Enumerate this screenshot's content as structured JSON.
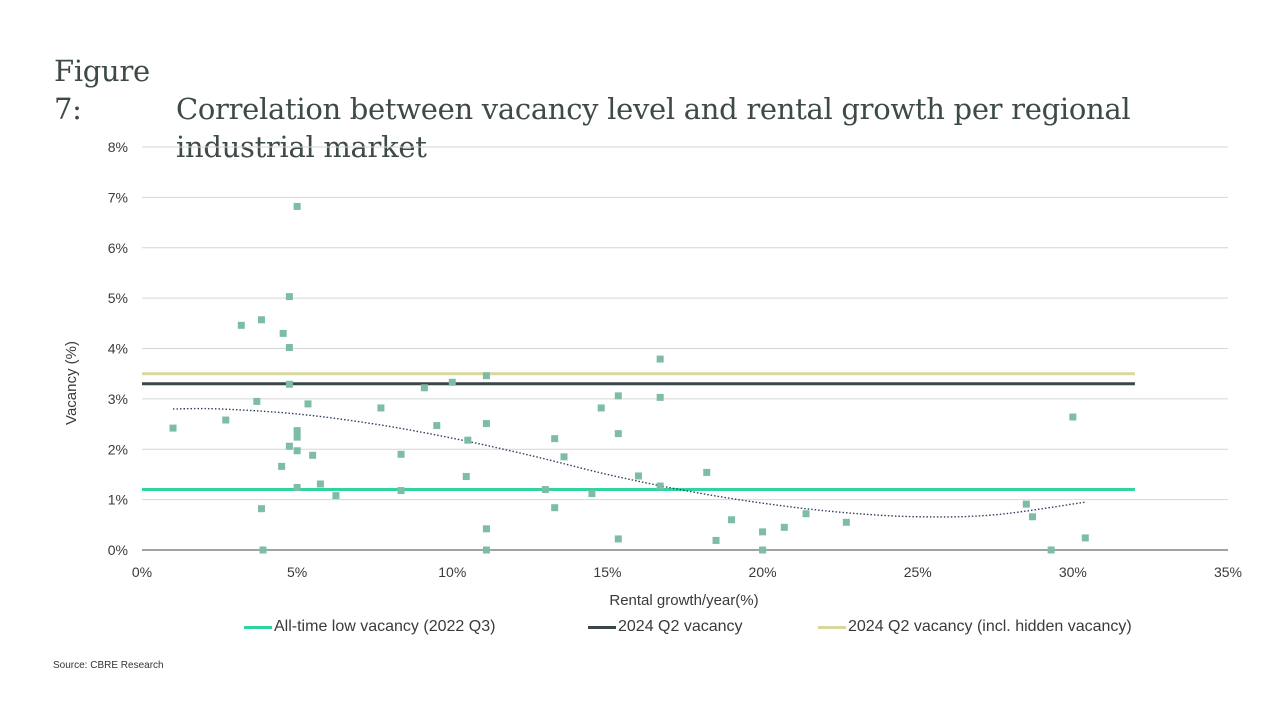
{
  "title": {
    "prefix": "Figure 7:",
    "line1": "Correlation between vacancy level and rental growth per regional",
    "line2": "industrial market"
  },
  "source": "Source: CBRE Research",
  "colors": {
    "points": "#7dbca5",
    "all_time_low": "#2fd4a0",
    "q2_vacancy": "#3b4649",
    "q2_hidden": "#d9d7a0",
    "trend": "#2f3f5f",
    "grid": "#d6d6d6"
  },
  "chart_data": {
    "type": "scatter",
    "title": "Correlation between vacancy level and rental growth per regional industrial market",
    "xlabel": "Rental growth/year(%)",
    "ylabel": "Vacancy (%)",
    "xlim": [
      0,
      35
    ],
    "ylim": [
      0,
      8
    ],
    "x_ticks": [
      "0%",
      "5%",
      "10%",
      "15%",
      "20%",
      "25%",
      "30%",
      "35%"
    ],
    "y_ticks": [
      "0%",
      "1%",
      "2%",
      "3%",
      "4%",
      "5%",
      "6%",
      "7%",
      "8%"
    ],
    "grid": true,
    "points": [
      {
        "x": 1.0,
        "y": 2.42
      },
      {
        "x": 2.7,
        "y": 2.58
      },
      {
        "x": 3.2,
        "y": 4.46
      },
      {
        "x": 3.7,
        "y": 2.95
      },
      {
        "x": 3.85,
        "y": 4.57
      },
      {
        "x": 3.85,
        "y": 0.82
      },
      {
        "x": 3.9,
        "y": 0.0
      },
      {
        "x": 4.5,
        "y": 1.66
      },
      {
        "x": 4.55,
        "y": 4.3
      },
      {
        "x": 4.75,
        "y": 5.03
      },
      {
        "x": 4.75,
        "y": 4.02
      },
      {
        "x": 4.75,
        "y": 3.29
      },
      {
        "x": 4.75,
        "y": 2.06
      },
      {
        "x": 5.0,
        "y": 6.82
      },
      {
        "x": 5.0,
        "y": 2.37
      },
      {
        "x": 5.0,
        "y": 2.24
      },
      {
        "x": 5.0,
        "y": 1.97
      },
      {
        "x": 5.0,
        "y": 1.24
      },
      {
        "x": 5.35,
        "y": 2.9
      },
      {
        "x": 5.5,
        "y": 1.88
      },
      {
        "x": 5.75,
        "y": 1.31
      },
      {
        "x": 6.25,
        "y": 1.08
      },
      {
        "x": 7.7,
        "y": 2.82
      },
      {
        "x": 8.35,
        "y": 1.9
      },
      {
        "x": 8.35,
        "y": 1.18
      },
      {
        "x": 9.1,
        "y": 3.22
      },
      {
        "x": 9.5,
        "y": 2.47
      },
      {
        "x": 10.0,
        "y": 3.33
      },
      {
        "x": 10.45,
        "y": 1.46
      },
      {
        "x": 10.5,
        "y": 2.18
      },
      {
        "x": 11.1,
        "y": 3.46
      },
      {
        "x": 11.1,
        "y": 2.51
      },
      {
        "x": 11.1,
        "y": 0.42
      },
      {
        "x": 11.1,
        "y": 0.0
      },
      {
        "x": 13.0,
        "y": 1.2
      },
      {
        "x": 13.3,
        "y": 2.21
      },
      {
        "x": 13.3,
        "y": 0.84
      },
      {
        "x": 13.6,
        "y": 1.85
      },
      {
        "x": 14.5,
        "y": 1.12
      },
      {
        "x": 14.8,
        "y": 2.82
      },
      {
        "x": 15.35,
        "y": 3.06
      },
      {
        "x": 15.35,
        "y": 2.31
      },
      {
        "x": 15.35,
        "y": 0.22
      },
      {
        "x": 16.0,
        "y": 1.47
      },
      {
        "x": 16.7,
        "y": 3.79
      },
      {
        "x": 16.7,
        "y": 3.03
      },
      {
        "x": 16.7,
        "y": 1.27
      },
      {
        "x": 18.2,
        "y": 1.54
      },
      {
        "x": 18.5,
        "y": 0.19
      },
      {
        "x": 19.0,
        "y": 0.6
      },
      {
        "x": 20.0,
        "y": 0.36
      },
      {
        "x": 20.0,
        "y": 0.0
      },
      {
        "x": 20.7,
        "y": 0.45
      },
      {
        "x": 21.4,
        "y": 0.72
      },
      {
        "x": 22.7,
        "y": 0.55
      },
      {
        "x": 28.5,
        "y": 0.91
      },
      {
        "x": 28.7,
        "y": 0.66
      },
      {
        "x": 29.3,
        "y": 0.0
      },
      {
        "x": 30.0,
        "y": 2.64
      },
      {
        "x": 30.4,
        "y": 0.24
      }
    ],
    "series": [
      {
        "name": "All-time low vacancy (2022 Q3)",
        "type": "hline",
        "y": 1.2,
        "x_range": [
          0,
          32
        ]
      },
      {
        "name": "2024 Q2 vacancy",
        "type": "hline",
        "y": 3.3,
        "x_range": [
          0,
          32
        ]
      },
      {
        "name": "2024 Q2 vacancy (incl. hidden vacancy)",
        "type": "hline",
        "y": 3.5,
        "x_range": [
          0,
          32
        ]
      }
    ],
    "trendline": {
      "style": "dotted",
      "x": [
        1.0,
        2.5,
        5.0,
        7.5,
        10.0,
        12.5,
        15.0,
        17.5,
        20.0,
        22.5,
        25.0,
        27.5,
        30.4
      ],
      "y": [
        2.8,
        2.8,
        2.7,
        2.5,
        2.22,
        1.88,
        1.5,
        1.18,
        0.93,
        0.75,
        0.66,
        0.7,
        0.95
      ]
    },
    "legend": [
      {
        "label": "All-time low vacancy (2022 Q3)",
        "color": "#2fd4a0"
      },
      {
        "label": "2024 Q2 vacancy",
        "color": "#3b4649"
      },
      {
        "label": "2024 Q2 vacancy (incl. hidden vacancy)",
        "color": "#d9d7a0"
      }
    ],
    "legend_position": "bottom"
  }
}
